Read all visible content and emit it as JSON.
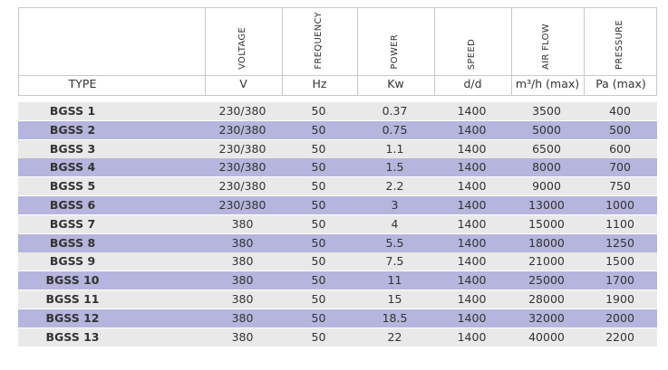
{
  "table": {
    "type_header": "TYPE",
    "columns": [
      {
        "name": "VOLTAGE",
        "unit": "V"
      },
      {
        "name": "FREQUENCY",
        "unit": "Hz"
      },
      {
        "name": "POWER",
        "unit": "Kw"
      },
      {
        "name": "SPEED",
        "unit": "d/d"
      },
      {
        "name": "AIR FLOW",
        "unit": "m³/h (max)"
      },
      {
        "name": "PRESSURE",
        "unit": "Pa (max)"
      }
    ],
    "rows": [
      [
        "BGSS 1",
        "230/380",
        "50",
        "0.37",
        "1400",
        "3500",
        "400"
      ],
      [
        "BGSS 2",
        "230/380",
        "50",
        "0.75",
        "1400",
        "5000",
        "500"
      ],
      [
        "BGSS 3",
        "230/380",
        "50",
        "1.1",
        "1400",
        "6500",
        "600"
      ],
      [
        "BGSS 4",
        "230/380",
        "50",
        "1.5",
        "1400",
        "8000",
        "700"
      ],
      [
        "BGSS 5",
        "230/380",
        "50",
        "2.2",
        "1400",
        "9000",
        "750"
      ],
      [
        "BGSS 6",
        "230/380",
        "50",
        "3",
        "1400",
        "13000",
        "1000"
      ],
      [
        "BGSS 7",
        "380",
        "50",
        "4",
        "1400",
        "15000",
        "1100"
      ],
      [
        "BGSS 8",
        "380",
        "50",
        "5.5",
        "1400",
        "18000",
        "1250"
      ],
      [
        "BGSS 9",
        "380",
        "50",
        "7.5",
        "1400",
        "21000",
        "1500"
      ],
      [
        "BGSS 10",
        "380",
        "50",
        "11",
        "1400",
        "25000",
        "1700"
      ],
      [
        "BGSS 11",
        "380",
        "50",
        "15",
        "1400",
        "28000",
        "1900"
      ],
      [
        "BGSS 12",
        "380",
        "50",
        "18.5",
        "1400",
        "32000",
        "2000"
      ],
      [
        "BGSS 13",
        "380",
        "50",
        "22",
        "1400",
        "40000",
        "2200"
      ]
    ]
  }
}
